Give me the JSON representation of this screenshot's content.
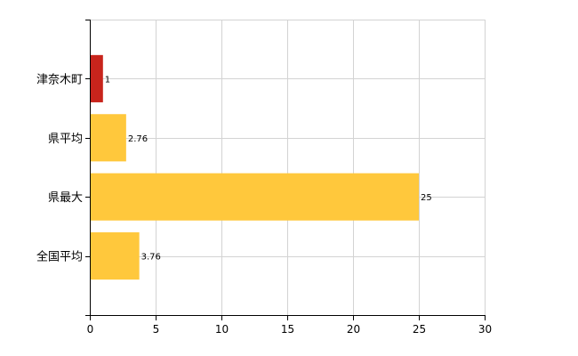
{
  "chart_data": {
    "type": "bar",
    "orientation": "horizontal",
    "categories": [
      "津奈木町",
      "県平均",
      "県最大",
      "全国平均"
    ],
    "values": [
      1,
      2.76,
      25,
      3.76
    ],
    "value_labels": [
      "1",
      "2.76",
      "25",
      "3.76"
    ],
    "bar_colors": [
      "#c8241c",
      "#ffc83c",
      "#ffc83c",
      "#ffc83c"
    ],
    "xlim": [
      0,
      30
    ],
    "x_ticks": [
      0,
      5,
      10,
      15,
      20,
      25,
      30
    ],
    "title": "",
    "xlabel": "",
    "ylabel": "",
    "grid": true,
    "legend": "none"
  }
}
